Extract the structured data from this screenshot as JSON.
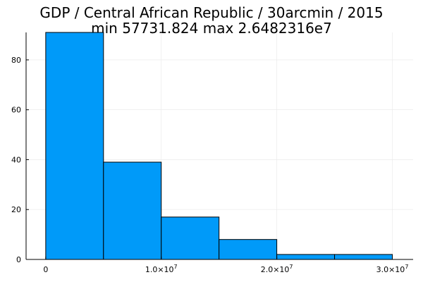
{
  "chart_data": {
    "type": "bar",
    "title": "GDP / Central African Republic / 30arcmin / 2015",
    "subtitle": "min 57731.824  max 2.6482316e7",
    "xlabel": "",
    "ylabel": "",
    "bin_edges": [
      0,
      5000000,
      10000000,
      15000000,
      20000000,
      25000000,
      30000000
    ],
    "values": [
      91,
      39,
      17,
      8,
      2,
      2
    ],
    "xlim": [
      -1700000,
      31800000
    ],
    "ylim": [
      0,
      91
    ],
    "x_ticks": [
      {
        "value": 0,
        "mantissa": "0",
        "exponent": ""
      },
      {
        "value": 10000000,
        "mantissa": "1.0×10",
        "exponent": "7"
      },
      {
        "value": 20000000,
        "mantissa": "2.0×10",
        "exponent": "7"
      },
      {
        "value": 30000000,
        "mantissa": "3.0×10",
        "exponent": "7"
      }
    ],
    "y_ticks": [
      {
        "value": 0,
        "label": "0"
      },
      {
        "value": 20,
        "label": "20"
      },
      {
        "value": 40,
        "label": "40"
      },
      {
        "value": 60,
        "label": "60"
      },
      {
        "value": 80,
        "label": "80"
      }
    ],
    "grid": true,
    "legend": "none",
    "bar_color": "#009af9",
    "bar_edge_color": "#000000"
  }
}
